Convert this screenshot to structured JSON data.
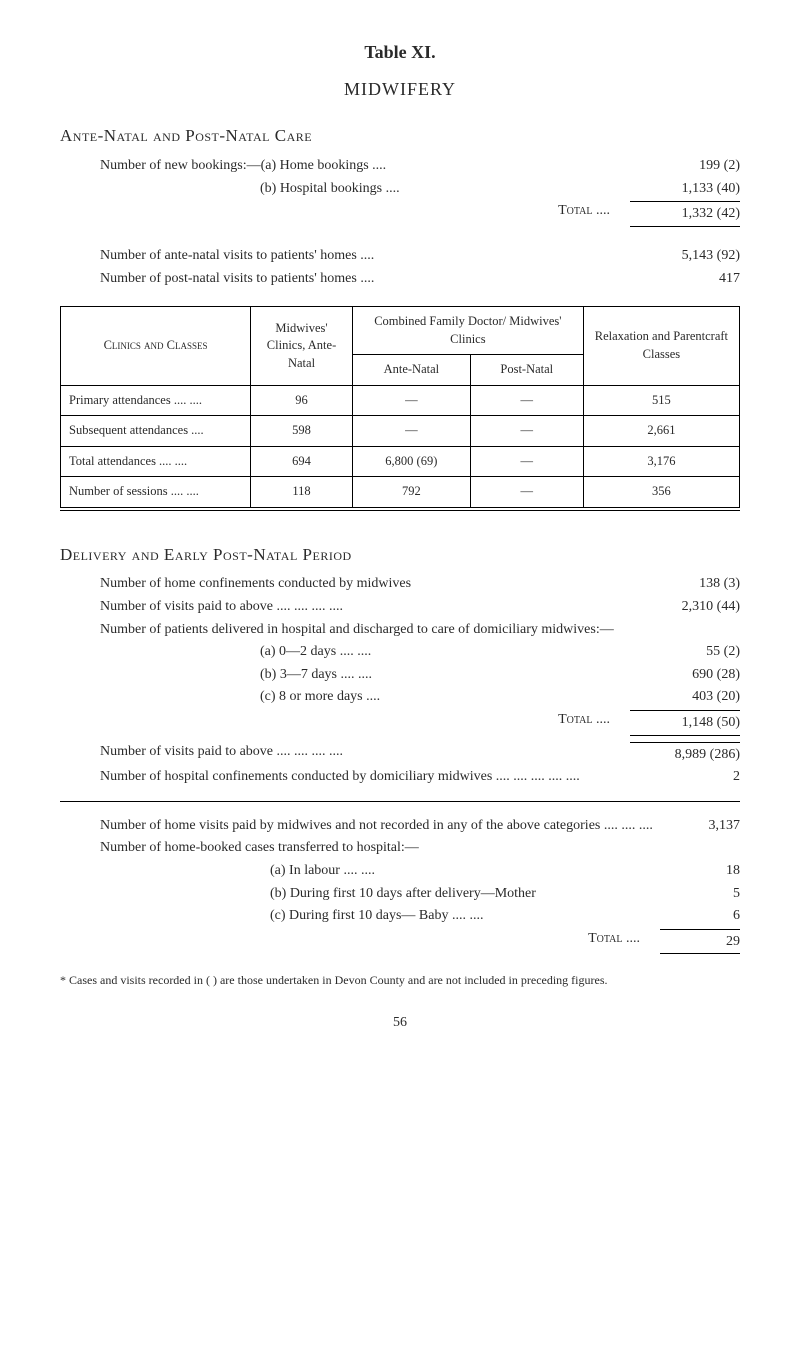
{
  "title_table": "Table XI.",
  "title_main": "MIDWIFERY",
  "section1": {
    "head": "Ante-Natal and Post-Natal Care",
    "r1_label": "Number of new bookings:—(a)  Home bookings     ....",
    "r1_val": "199 (2)",
    "r2_label": "(b)  Hospital bookings  ....",
    "r2_val": "1,133 (40)",
    "total_label": "Total ....",
    "total_val": "1,332 (42)",
    "r3_label": "Number of ante-natal visits to patients' homes       ....",
    "r3_val": "5,143 (92)",
    "r4_label": "Number of post-natal visits to patients' homes       ....",
    "r4_val": "417"
  },
  "clinics_table": {
    "h1": "Clinics and Classes",
    "h2": "Midwives' Clinics, Ante-Natal",
    "h3": "Combined Family Doctor/ Midwives' Clinics",
    "h3a": "Ante-Natal",
    "h3b": "Post-Natal",
    "h4": "Relaxation and Parentcraft Classes",
    "rows": [
      {
        "lbl": "Primary attendances    ....    ....",
        "a": "96",
        "b": "—",
        "c": "—",
        "d": "515"
      },
      {
        "lbl": "Subsequent attendances        ....",
        "a": "598",
        "b": "—",
        "c": "—",
        "d": "2,661"
      },
      {
        "lbl": "Total attendances       ....    ....",
        "a": "694",
        "b": "6,800 (69)",
        "c": "—",
        "d": "3,176"
      },
      {
        "lbl": "Number of sessions     ....    ....",
        "a": "118",
        "b": "792",
        "c": "—",
        "d": "356"
      }
    ]
  },
  "section2": {
    "head": "Delivery and Early Post-Natal Period",
    "r1_label": "Number of home confinements conducted by midwives",
    "r1_val": "138 (3)",
    "r2_label": "Number of visits paid to above ....      ....          ....      ....",
    "r2_val": "2,310 (44)",
    "r3_label": "Number of patients delivered in hospital and discharged to care of domiciliary midwives:—",
    "r3a_label": "(a)  0—2 days       ....    ....",
    "r3a_val": "55 (2)",
    "r3b_label": "(b)  3—7 days       ....    ....",
    "r3b_val": "690 (28)",
    "r3c_label": "(c)  8 or more days      ....",
    "r3c_val": "403 (20)",
    "total_label": "Total ....",
    "total_val": "1,148 (50)",
    "r4_label": "Number of visits paid to above ....      ....          ....      ....",
    "r4_val": "8,989 (286)",
    "r5_label": "Number   of   hospital   confinements   conducted   by domiciliary midwives ....        ....        ....        ....        ....",
    "r5_val": "2"
  },
  "section3": {
    "r1_label": "Number of home visits paid by midwives and not recorded in any of the above categories           ....      ....      ....",
    "r1_val": "3,137",
    "r2_label": "Number of home-booked cases transferred to hospital:—",
    "r2a_label": "(a)   In labour       ....       ....",
    "r2a_val": "18",
    "r2b_label": "(b)   During first 10 days after delivery—Mother",
    "r2b_val": "5",
    "r2c_label": "(c)   During  first  10  days— Baby         ....       ....",
    "r2c_val": "6",
    "total_label": "Total ....",
    "total_val": "29"
  },
  "footnote": "* Cases  and  visits  recorded  in  ( )  are  those  undertaken  in  Devon  County  and  are  not  included  in preceding figures.",
  "page_num": "56"
}
